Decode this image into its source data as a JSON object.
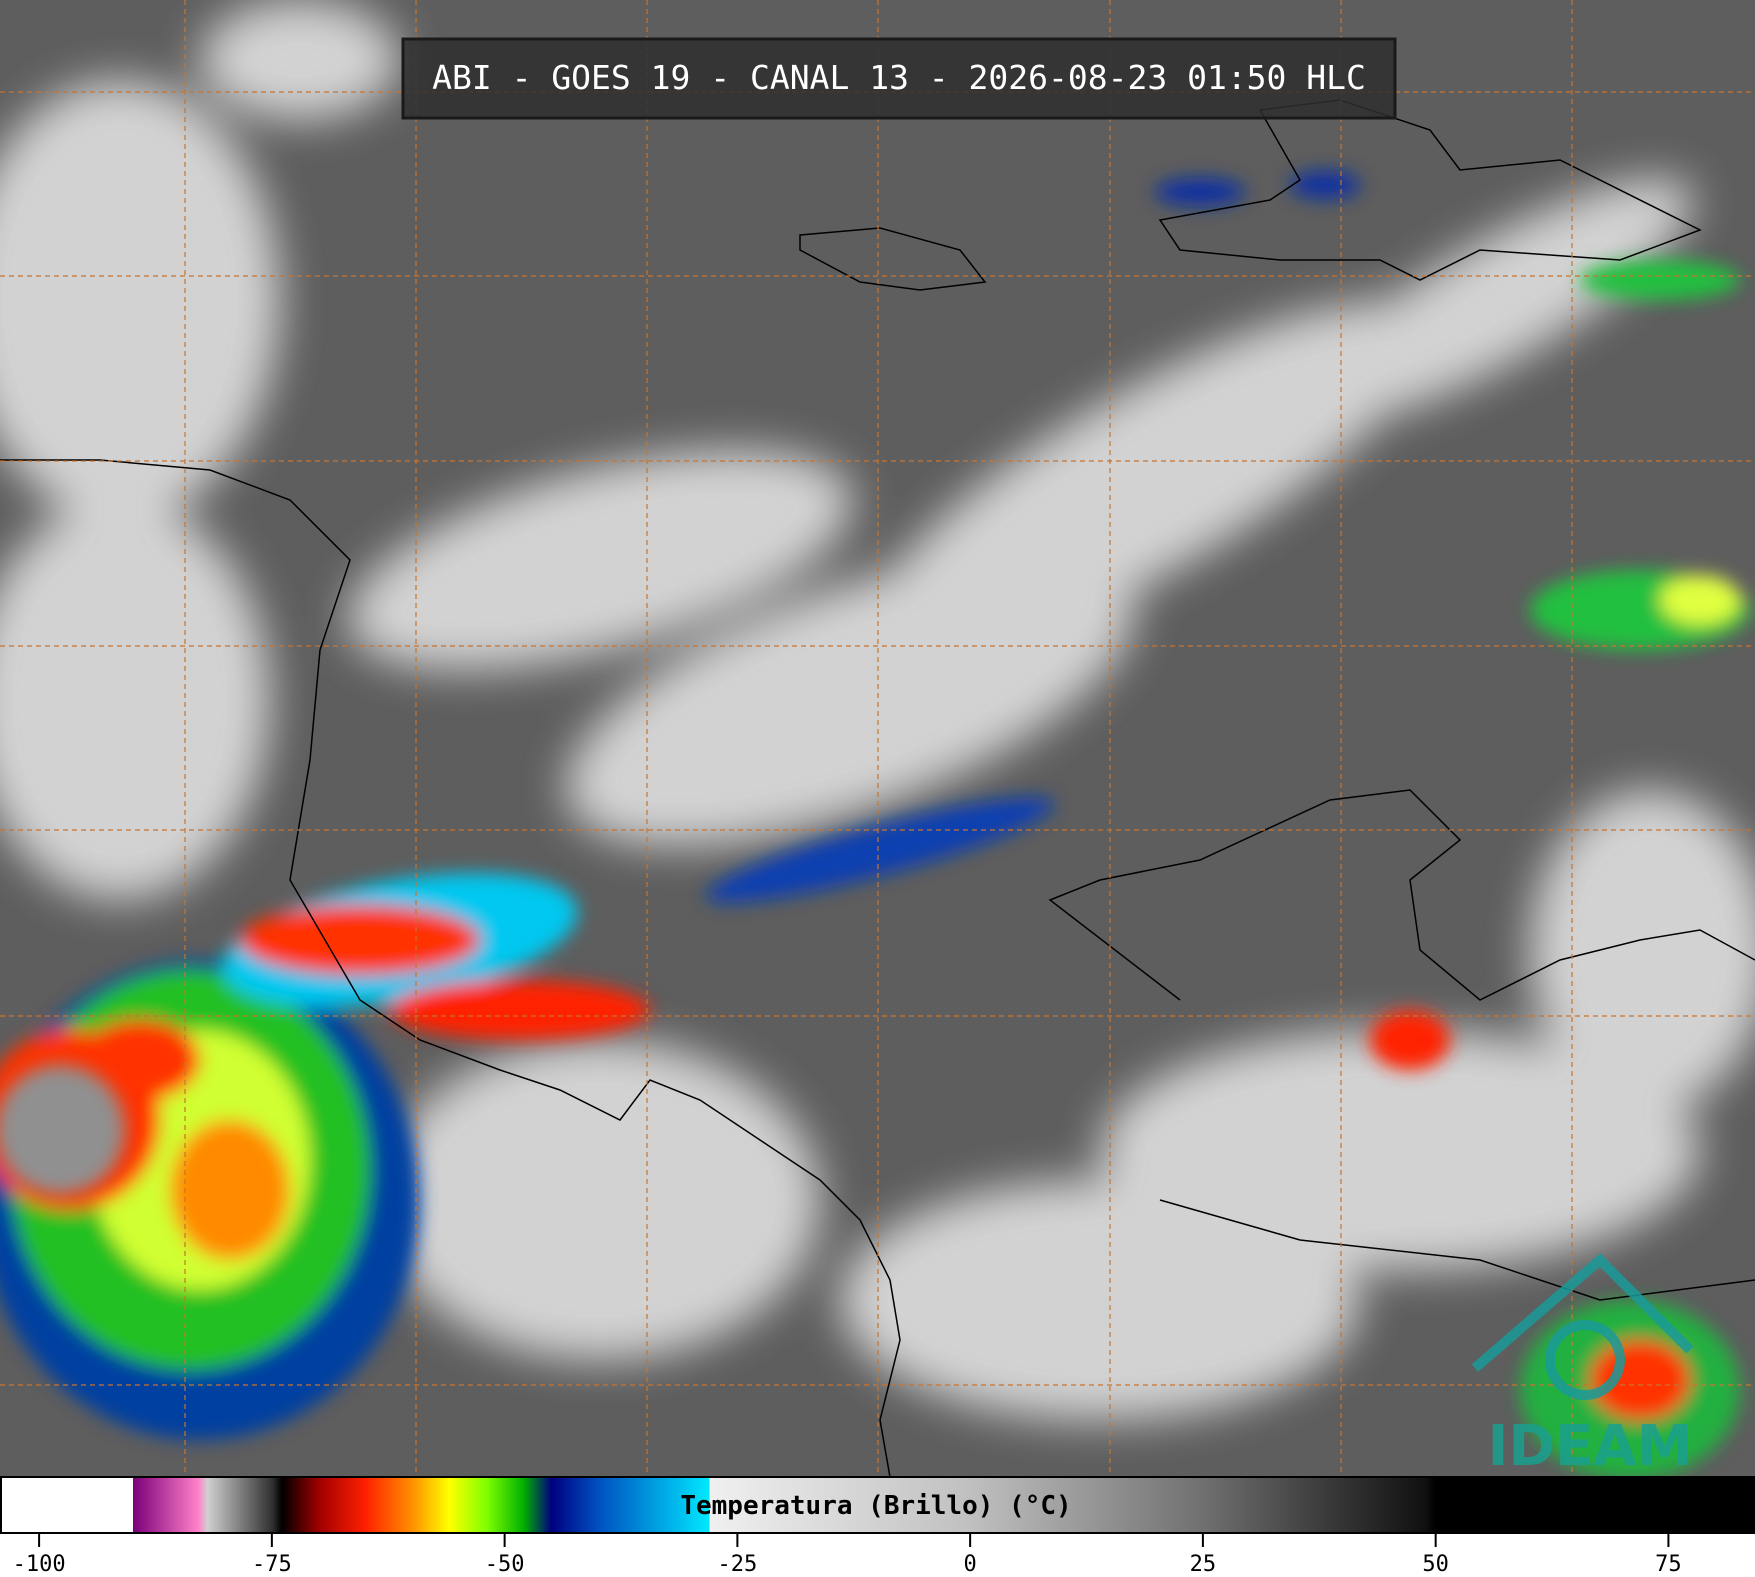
{
  "title": "ABI - GOES 19 - CANAL 13 - 2026-08-23 01:50 HLC",
  "logo": "IDEAM",
  "colorbar": {
    "label": "Temperatura (Brillo) (°C)",
    "lim": [
      -104.2,
      84.3
    ],
    "ticks": [
      -100,
      -75,
      -50,
      -25,
      0,
      25,
      50,
      75
    ],
    "colormap": [
      {
        "value": -104.2,
        "color": "#ffffff"
      },
      {
        "value": -90,
        "color": "#ffffff"
      },
      {
        "value": -90,
        "color": "#7a007a"
      },
      {
        "value": -83,
        "color": "#ff80c8"
      },
      {
        "value": -82,
        "color": "#d0d0d0"
      },
      {
        "value": -75,
        "color": "#303030"
      },
      {
        "value": -74,
        "color": "#000000"
      },
      {
        "value": -70,
        "color": "#a00000"
      },
      {
        "value": -65,
        "color": "#ff2000"
      },
      {
        "value": -60,
        "color": "#ff9000"
      },
      {
        "value": -56,
        "color": "#ffff00"
      },
      {
        "value": -52,
        "color": "#80ff00"
      },
      {
        "value": -48,
        "color": "#00b000"
      },
      {
        "value": -45,
        "color": "#000080"
      },
      {
        "value": -40,
        "color": "#0050c0"
      },
      {
        "value": -28,
        "color": "#00e8ff"
      },
      {
        "value": -28,
        "color": "#f0f0f0"
      },
      {
        "value": 0,
        "color": "#c0c0c0"
      },
      {
        "value": 25,
        "color": "#707070"
      },
      {
        "value": 49,
        "color": "#101010"
      },
      {
        "value": 50,
        "color": "#000000"
      },
      {
        "value": 84.3,
        "color": "#000000"
      }
    ]
  }
}
